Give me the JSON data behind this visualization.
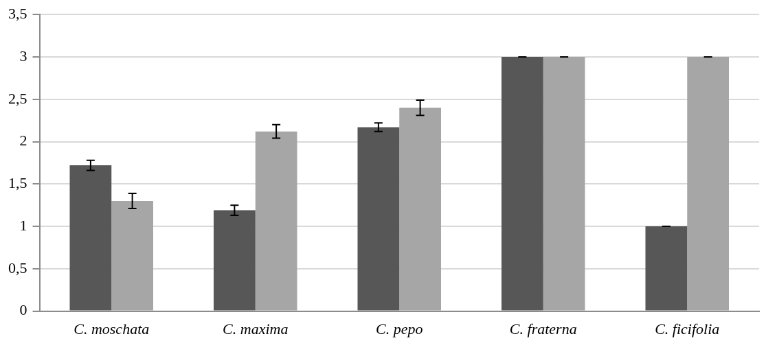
{
  "chart_data": {
    "type": "bar",
    "categories": [
      "C. moschata",
      "C. maxima",
      "C. pepo",
      "C. fraterna",
      "C. ficifolia"
    ],
    "series": [
      {
        "color": "#575757",
        "values": [
          1.72,
          1.19,
          2.17,
          3,
          1
        ],
        "errors": [
          0.06,
          0.06,
          0.05,
          0,
          0
        ]
      },
      {
        "color": "#a6a6a6",
        "values": [
          1.3,
          2.12,
          2.4,
          3,
          3
        ],
        "errors": [
          0.09,
          0.08,
          0.09,
          0,
          0
        ]
      }
    ],
    "ylim": [
      0,
      3.5
    ],
    "yticks": [
      0,
      {
        "value": 0.5,
        "label": "0,5"
      },
      1,
      {
        "value": 1.5,
        "label": "1,5"
      },
      2,
      {
        "value": 2.5,
        "label": "2,5"
      },
      3,
      {
        "value": 3.5,
        "label": "3,5"
      }
    ],
    "grid": "y",
    "legend": false
  }
}
